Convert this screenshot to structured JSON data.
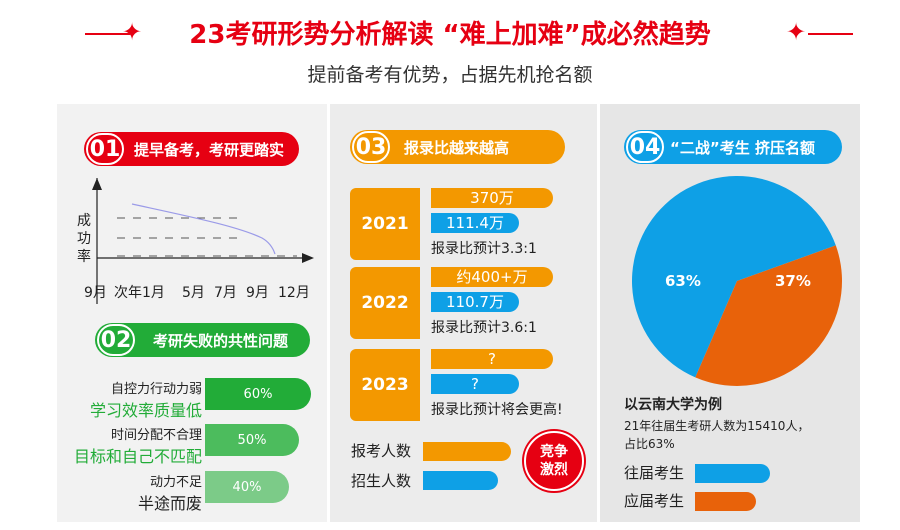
{
  "header": {
    "title": "23考研形势分析解读 “难上加难”成必然趋势",
    "subtitle": "提前备考有优势，占据先机抢名额",
    "star_icon": "✦"
  },
  "colors": {
    "red": "#e60012",
    "green": "#22ac38",
    "orange": "#f39800",
    "blue": "#0ea0e6",
    "dark_orange": "#e8620a"
  },
  "s1": {
    "num": "01",
    "title": "提早备考，考研更踏实",
    "ylabel": [
      "成",
      "功",
      "率"
    ],
    "xticks": [
      "9月",
      "次年1月",
      "5月",
      "7月",
      "9月",
      "12月"
    ]
  },
  "s2": {
    "num": "02",
    "title": "考研失败的共性问题",
    "items": [
      {
        "line1": "自控力行动力弱",
        "line2": "学习效率质量低",
        "value": "60%",
        "pct": 60
      },
      {
        "line1": "时间分配不合理",
        "line2": "目标和自己不匹配",
        "value": "50%",
        "pct": 50
      },
      {
        "line1": "动力不足",
        "line2": "半途而废",
        "value": "40%",
        "pct": 40
      }
    ]
  },
  "s3": {
    "num": "03",
    "title": "报录比越来越高",
    "years": [
      {
        "year": "2021",
        "applicants": "370万",
        "admitted": "111.4万",
        "ratio": "报录比预计3.3:1"
      },
      {
        "year": "2022",
        "applicants": "约400+万",
        "admitted": "110.7万",
        "ratio": "报录比预计3.6:1"
      },
      {
        "year": "2023",
        "applicants": "?",
        "admitted": "?",
        "ratio": "报录比预计将会更高!"
      }
    ],
    "legend": {
      "applicants": "报考人数",
      "admitted": "招生人数"
    },
    "badge": [
      "竞争",
      "激烈"
    ]
  },
  "s4": {
    "num": "04",
    "title": "“二战”考生 挤压名额",
    "pie": [
      {
        "label": "63%",
        "value": 63,
        "color": "#0ea0e6"
      },
      {
        "label": "37%",
        "value": 37,
        "color": "#e8620a"
      }
    ],
    "example_title": "以云南大学为例",
    "example_text1": "21年往届生考研人数为15410人，",
    "example_text2": "占比63%",
    "legend": {
      "past": "往届考生",
      "current": "应届考生"
    }
  }
}
